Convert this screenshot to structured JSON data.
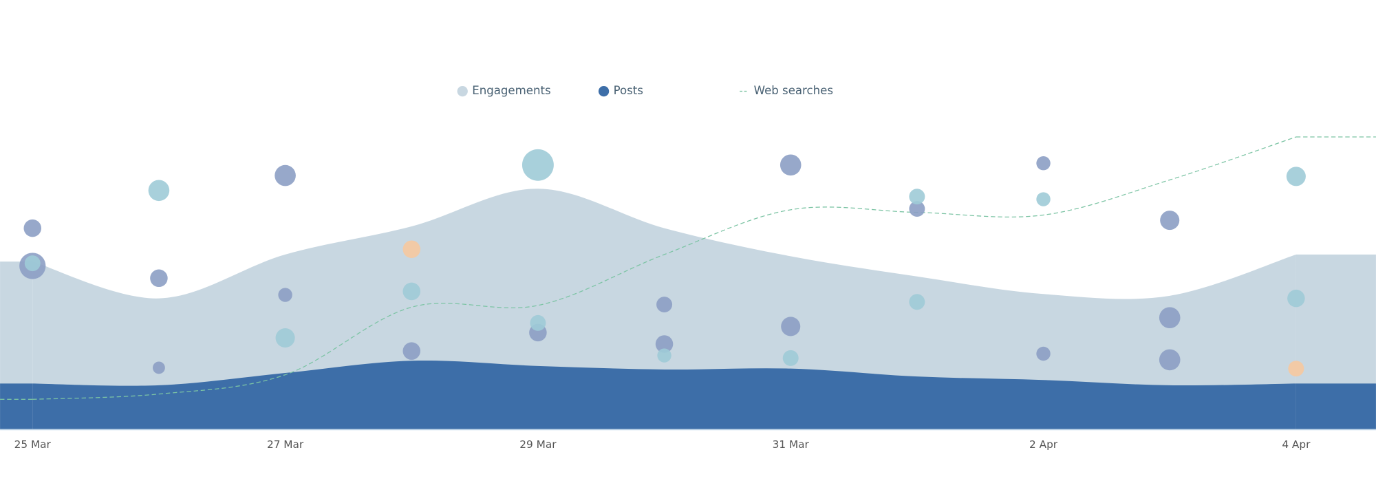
{
  "chart_data": {
    "type": "area",
    "legend": "top",
    "categories": [
      "25 Mar",
      null,
      "27 Mar",
      null,
      "29 Mar",
      null,
      "31 Mar",
      null,
      "2 Apr",
      null,
      "4 Apr"
    ],
    "series": [
      {
        "name": "Engagements",
        "type": "area",
        "color": "#c8d7e1",
        "values": [
          191,
          149,
          199,
          231,
          274,
          229,
          197,
          174,
          154,
          152,
          199
        ]
      },
      {
        "name": "Posts",
        "type": "area",
        "color": "#3d6ea8",
        "values": [
          52,
          50,
          64,
          78,
          72,
          68,
          69,
          60,
          56,
          50,
          52
        ]
      },
      {
        "name": "Web searches",
        "type": "line",
        "dashed": true,
        "color": "#7cc4a4",
        "values": [
          34,
          40,
          62,
          139,
          141,
          199,
          250,
          247,
          244,
          284,
          333
        ]
      }
    ],
    "bubbles": [
      {
        "color": "#8c9ec4",
        "values": [
          229,
          172,
          289,
          89,
          110,
          142,
          301,
          251,
          303,
          238,
          null
        ],
        "sizes": [
          10,
          10,
          12,
          10,
          10,
          9,
          12,
          9,
          8,
          11,
          null
        ]
      },
      {
        "color": "#8c9ec4",
        "values": [
          186,
          70,
          153,
          null,
          null,
          97,
          117,
          null,
          86,
          127,
          null
        ],
        "sizes": [
          15,
          7,
          8,
          null,
          null,
          10,
          11,
          null,
          8,
          12,
          null
        ]
      },
      {
        "color": "#8c9ec4",
        "values": [
          null,
          null,
          null,
          null,
          null,
          null,
          null,
          null,
          null,
          79,
          null
        ],
        "sizes": [
          null,
          null,
          null,
          null,
          null,
          null,
          null,
          null,
          null,
          12,
          null
        ]
      },
      {
        "color": "#9ecbd7",
        "values": [
          189,
          272,
          104,
          157,
          301,
          84,
          81,
          265,
          262,
          null,
          288
        ],
        "sizes": [
          9,
          12,
          11,
          10,
          18,
          8,
          9,
          9,
          8,
          null,
          11
        ]
      },
      {
        "color": "#9ecbd7",
        "values": [
          null,
          null,
          null,
          null,
          121,
          null,
          null,
          145,
          null,
          null,
          149
        ],
        "sizes": [
          null,
          null,
          null,
          null,
          9,
          null,
          null,
          9,
          null,
          null,
          10
        ]
      },
      {
        "color": "#f6c9a0",
        "values": [
          null,
          null,
          null,
          205,
          null,
          null,
          null,
          null,
          null,
          null,
          69
        ],
        "sizes": [
          null,
          null,
          null,
          10,
          null,
          null,
          null,
          null,
          null,
          null,
          9
        ]
      }
    ],
    "ylim": [
      0,
      340
    ]
  }
}
